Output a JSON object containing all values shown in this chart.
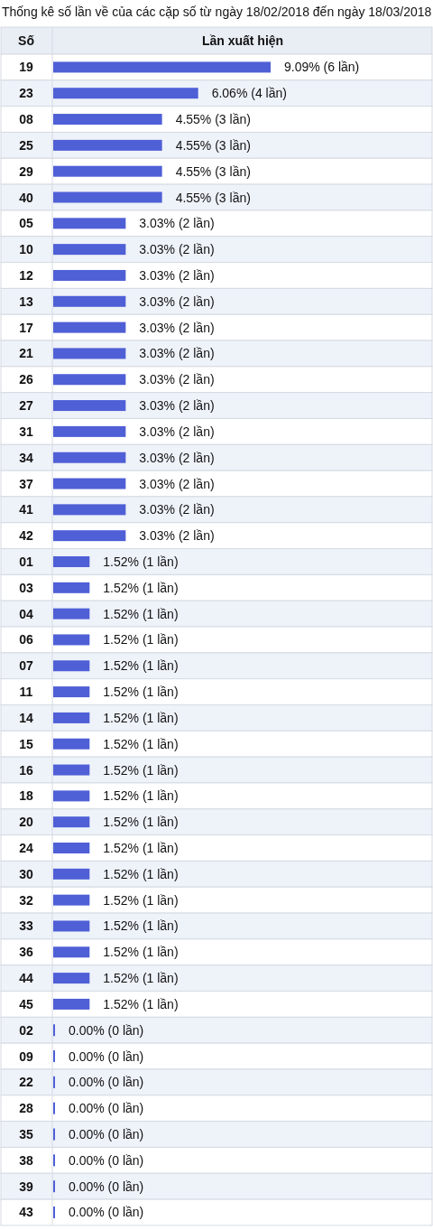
{
  "chart_data": {
    "type": "bar",
    "orientation": "horizontal",
    "title": "Thống kê số lần về của các cặp số từ ngày 18/02/2018 đến ngày 18/03/2018",
    "ylabel": "Số",
    "xlabel": "Lần xuất hiện",
    "categories": [
      "19",
      "23",
      "08",
      "25",
      "29",
      "40",
      "05",
      "10",
      "12",
      "13",
      "17",
      "21",
      "26",
      "27",
      "31",
      "34",
      "37",
      "41",
      "42",
      "01",
      "03",
      "04",
      "06",
      "07",
      "11",
      "14",
      "15",
      "16",
      "18",
      "20",
      "24",
      "30",
      "32",
      "33",
      "36",
      "44",
      "45",
      "02",
      "09",
      "22",
      "28",
      "35",
      "38",
      "39",
      "43"
    ],
    "values": [
      9.09,
      6.06,
      4.55,
      4.55,
      4.55,
      4.55,
      3.03,
      3.03,
      3.03,
      3.03,
      3.03,
      3.03,
      3.03,
      3.03,
      3.03,
      3.03,
      3.03,
      3.03,
      3.03,
      1.52,
      1.52,
      1.52,
      1.52,
      1.52,
      1.52,
      1.52,
      1.52,
      1.52,
      1.52,
      1.52,
      1.52,
      1.52,
      1.52,
      1.52,
      1.52,
      1.52,
      1.52,
      0,
      0,
      0,
      0,
      0,
      0,
      0,
      0
    ],
    "value_labels": [
      "9.09% (6 lần)",
      "6.06% (4 lần)",
      "4.55% (3 lần)",
      "4.55% (3 lần)",
      "4.55% (3 lần)",
      "4.55% (3 lần)",
      "3.03% (2 lần)",
      "3.03% (2 lần)",
      "3.03% (2 lần)",
      "3.03% (2 lần)",
      "3.03% (2 lần)",
      "3.03% (2 lần)",
      "3.03% (2 lần)",
      "3.03% (2 lần)",
      "3.03% (2 lần)",
      "3.03% (2 lần)",
      "3.03% (2 lần)",
      "3.03% (2 lần)",
      "3.03% (2 lần)",
      "1.52% (1 lần)",
      "1.52% (1 lần)",
      "1.52% (1 lần)",
      "1.52% (1 lần)",
      "1.52% (1 lần)",
      "1.52% (1 lần)",
      "1.52% (1 lần)",
      "1.52% (1 lần)",
      "1.52% (1 lần)",
      "1.52% (1 lần)",
      "1.52% (1 lần)",
      "1.52% (1 lần)",
      "1.52% (1 lần)",
      "1.52% (1 lần)",
      "1.52% (1 lần)",
      "1.52% (1 lần)",
      "1.52% (1 lần)",
      "1.52% (1 lần)",
      "0.00% (0 lần)",
      "0.00% (0 lần)",
      "0.00% (0 lần)",
      "0.00% (0 lần)",
      "0.00% (0 lần)",
      "0.00% (0 lần)",
      "0.00% (0 lần)",
      "0.00% (0 lần)"
    ],
    "color": "#4f5fd6"
  }
}
